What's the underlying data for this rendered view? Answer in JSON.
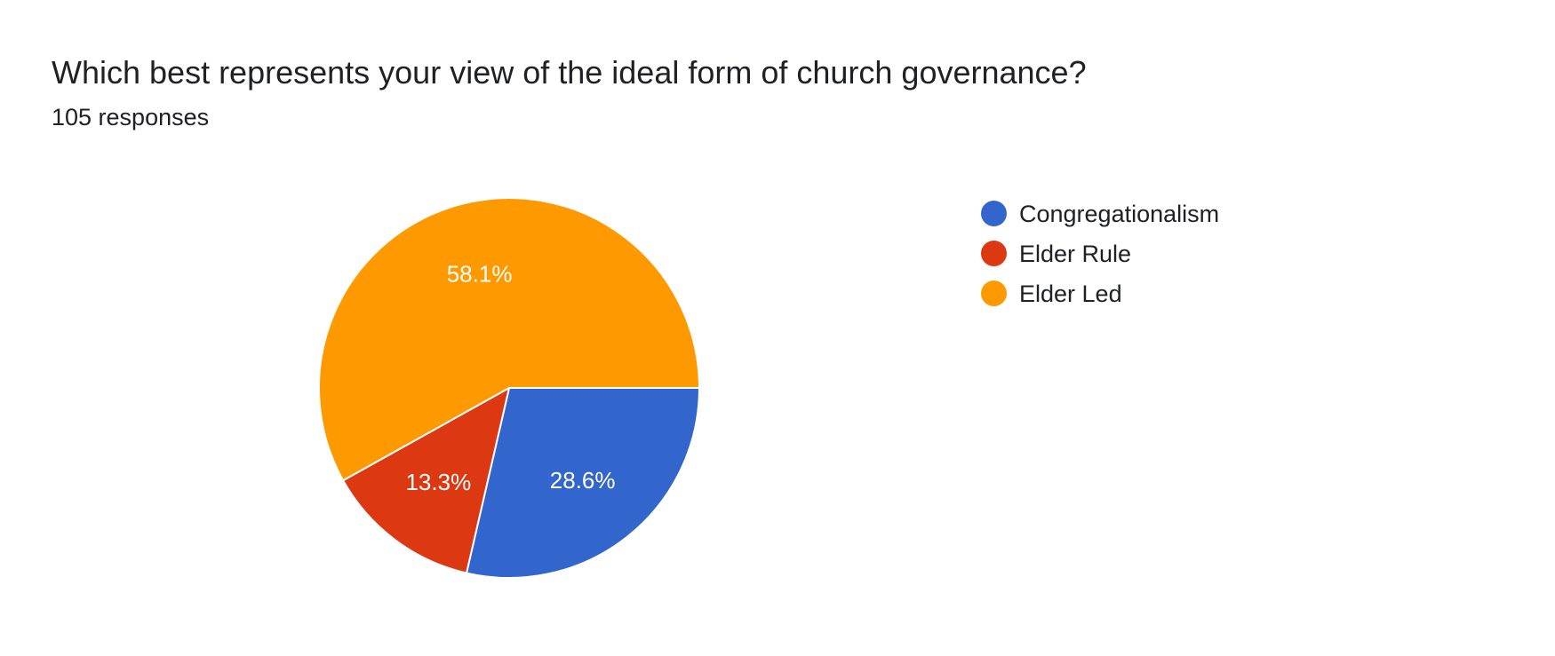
{
  "header": {
    "title": "Which best represents your view of the ideal form of church governance?",
    "subtitle": "105 responses"
  },
  "chart_data": {
    "type": "pie",
    "title": "Which best represents your view of the ideal form of church governance?",
    "subtitle": "105 responses",
    "slices": [
      {
        "label": "Congregationalism",
        "value": 28.6,
        "display": "28.6%",
        "color": "#3366cc"
      },
      {
        "label": "Elder Rule",
        "value": 13.3,
        "display": "13.3%",
        "color": "#dc3912"
      },
      {
        "label": "Elder Led",
        "value": 58.1,
        "display": "58.1%",
        "color": "#ff9900"
      }
    ],
    "legend_position": "right"
  }
}
